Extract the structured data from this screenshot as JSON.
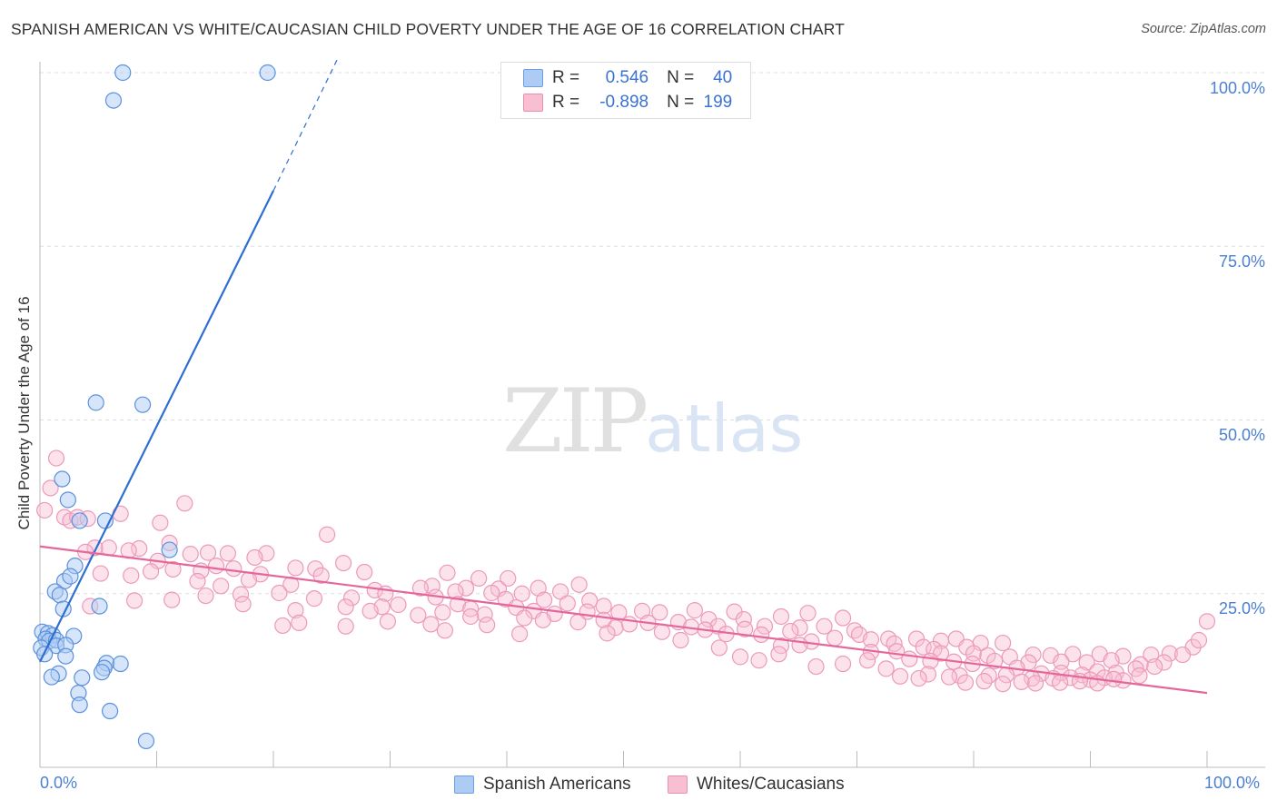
{
  "header": {
    "title": "SPANISH AMERICAN VS WHITE/CAUCASIAN CHILD POVERTY UNDER THE AGE OF 16 CORRELATION CHART",
    "source": "Source: ZipAtlas.com"
  },
  "watermark": {
    "zip": "ZIP",
    "atlas": "atlas"
  },
  "legend": {
    "rows": [
      {
        "r_label": "R =",
        "r_value": "0.546",
        "n_label": "N =",
        "n_value": "40"
      },
      {
        "r_label": "R =",
        "r_value": "-0.898",
        "n_label": "N =",
        "n_value": "199"
      }
    ]
  },
  "bottom_legend": {
    "series1": "Spanish Americans",
    "series2": "Whites/Caucasians"
  },
  "colors": {
    "blue_fill": "#aecbf4",
    "blue_stroke": "#5b91dd",
    "blue_line": "#2d6fd1",
    "pink_fill": "#f8bfd3",
    "pink_stroke": "#ec9ab9",
    "pink_line": "#e4679a"
  },
  "chart_data": {
    "type": "scatter",
    "title": "SPANISH AMERICAN VS WHITE/CAUCASIAN CHILD POVERTY UNDER THE AGE OF 16 CORRELATION CHART",
    "xlabel": "",
    "ylabel": "Child Poverty Under the Age of 16",
    "xlim": [
      0,
      100
    ],
    "ylim": [
      0,
      100
    ],
    "x_tick_labels": [
      "0.0%",
      "100.0%"
    ],
    "y_ticks": [
      25,
      50,
      75,
      100
    ],
    "y_tick_labels": [
      "25.0%",
      "50.0%",
      "75.0%",
      "100.0%"
    ],
    "grid": true,
    "legend_position": "top-center",
    "series": [
      {
        "name": "Spanish Americans",
        "color": "#aecbf4",
        "r": 0.546,
        "n": 40,
        "trend": {
          "x0": 0,
          "y0": 15.2,
          "x1": 20,
          "y1": 83,
          "dash_to_x": 25.5,
          "dash_to_y": 102
        },
        "points": [
          [
            7.1,
            100
          ],
          [
            19.5,
            100
          ],
          [
            6.3,
            96
          ],
          [
            4.8,
            52.5
          ],
          [
            8.8,
            52.2
          ],
          [
            1.9,
            41.5
          ],
          [
            2.4,
            38.5
          ],
          [
            3.4,
            35.5
          ],
          [
            5.6,
            35.5
          ],
          [
            11.1,
            31.3
          ],
          [
            3,
            29
          ],
          [
            2.1,
            26.8
          ],
          [
            2.6,
            27.5
          ],
          [
            1.3,
            25.3
          ],
          [
            1.7,
            24.8
          ],
          [
            5.1,
            23.2
          ],
          [
            2,
            22.8
          ],
          [
            0.2,
            19.5
          ],
          [
            0.7,
            19.3
          ],
          [
            1.1,
            19
          ],
          [
            2.9,
            18.9
          ],
          [
            0.5,
            18.5
          ],
          [
            0.8,
            18.2
          ],
          [
            1.4,
            18.3
          ],
          [
            0.1,
            17.2
          ],
          [
            1.4,
            17.5
          ],
          [
            2.2,
            17.6
          ],
          [
            0.4,
            16.3
          ],
          [
            2.2,
            16
          ],
          [
            5.7,
            15
          ],
          [
            6.9,
            14.9
          ],
          [
            5.5,
            14.3
          ],
          [
            5.3,
            13.7
          ],
          [
            1.6,
            13.5
          ],
          [
            1,
            13
          ],
          [
            3.6,
            12.9
          ],
          [
            3.3,
            10.7
          ],
          [
            3.4,
            9
          ],
          [
            6,
            8.1
          ],
          [
            9.1,
            3.8
          ]
        ]
      },
      {
        "name": "Whites/Caucasians",
        "color": "#f8bfd3",
        "r": -0.898,
        "n": 199,
        "trend": {
          "x0": 0,
          "y0": 31.8,
          "x1": 100,
          "y1": 10.7
        },
        "points": [
          [
            1.4,
            44.5
          ],
          [
            0.9,
            40.2
          ],
          [
            12.4,
            38
          ],
          [
            0.4,
            37
          ],
          [
            6.9,
            36.5
          ],
          [
            2.1,
            36
          ],
          [
            2.6,
            35.5
          ],
          [
            3.2,
            36
          ],
          [
            4.1,
            35.8
          ],
          [
            10.3,
            35.2
          ],
          [
            24.6,
            33.5
          ],
          [
            11.1,
            32.3
          ],
          [
            5.9,
            31.6
          ],
          [
            4.7,
            31.6
          ],
          [
            8.5,
            31.5
          ],
          [
            7.6,
            31.2
          ],
          [
            3.9,
            31
          ],
          [
            12.9,
            30.7
          ],
          [
            14.4,
            30.9
          ],
          [
            16.1,
            30.8
          ],
          [
            19.4,
            30.8
          ],
          [
            18.4,
            30.2
          ],
          [
            10.1,
            29.7
          ],
          [
            26,
            29.4
          ],
          [
            15.1,
            29
          ],
          [
            11.4,
            28.5
          ],
          [
            9.5,
            28.2
          ],
          [
            13.8,
            28.3
          ],
          [
            16.6,
            28.6
          ],
          [
            21.9,
            28.7
          ],
          [
            23.6,
            28.6
          ],
          [
            27.8,
            28.1
          ],
          [
            5.2,
            27.9
          ],
          [
            7.8,
            27.6
          ],
          [
            18.9,
            27.8
          ],
          [
            24.1,
            27.6
          ],
          [
            17.9,
            27
          ],
          [
            34.9,
            28
          ],
          [
            37.6,
            27.2
          ],
          [
            40.1,
            27.2
          ],
          [
            13.5,
            26.8
          ],
          [
            15.5,
            26.1
          ],
          [
            21.5,
            26.3
          ],
          [
            36.5,
            25.8
          ],
          [
            33.6,
            26.1
          ],
          [
            39.3,
            25.7
          ],
          [
            42.7,
            25.8
          ],
          [
            46.2,
            26.3
          ],
          [
            28.7,
            25.5
          ],
          [
            29.6,
            25
          ],
          [
            32.6,
            25.8
          ],
          [
            35.6,
            25.3
          ],
          [
            38.7,
            25.1
          ],
          [
            41.3,
            25
          ],
          [
            44.6,
            25.3
          ],
          [
            20.5,
            25.1
          ],
          [
            17.2,
            24.9
          ],
          [
            14.2,
            24.7
          ],
          [
            23.5,
            24.3
          ],
          [
            26.7,
            24.4
          ],
          [
            33.9,
            24.5
          ],
          [
            39.9,
            24.2
          ],
          [
            43.2,
            24.1
          ],
          [
            47.1,
            24
          ],
          [
            8.1,
            24
          ],
          [
            11.3,
            24.1
          ],
          [
            17.4,
            23.5
          ],
          [
            30.7,
            23.4
          ],
          [
            29.3,
            23.1
          ],
          [
            35.8,
            23.5
          ],
          [
            36.9,
            22.8
          ],
          [
            40.8,
            23
          ],
          [
            45.2,
            23.6
          ],
          [
            48.3,
            23.2
          ],
          [
            4.3,
            23.2
          ],
          [
            21.9,
            22.6
          ],
          [
            26.2,
            23.1
          ],
          [
            28.3,
            22.5
          ],
          [
            34.5,
            22.3
          ],
          [
            38.1,
            22
          ],
          [
            42.3,
            22.5
          ],
          [
            44.1,
            22.1
          ],
          [
            46.9,
            22.4
          ],
          [
            49.6,
            22.3
          ],
          [
            51.6,
            22.5
          ],
          [
            53.1,
            22.3
          ],
          [
            56.1,
            22.6
          ],
          [
            59.5,
            22.4
          ],
          [
            32.4,
            21.9
          ],
          [
            36.9,
            21.7
          ],
          [
            41.5,
            21.5
          ],
          [
            43.1,
            21.2
          ],
          [
            46.1,
            20.9
          ],
          [
            48.3,
            21.2
          ],
          [
            50.5,
            20.6
          ],
          [
            54.7,
            20.9
          ],
          [
            57.3,
            21.3
          ],
          [
            60.3,
            21.3
          ],
          [
            63.5,
            21.7
          ],
          [
            65.8,
            22.2
          ],
          [
            68.8,
            21.5
          ],
          [
            22.2,
            20.8
          ],
          [
            29.8,
            21
          ],
          [
            33.5,
            20.6
          ],
          [
            38.3,
            20.5
          ],
          [
            49.3,
            20.1
          ],
          [
            52.1,
            20.8
          ],
          [
            55.8,
            20.2
          ],
          [
            58.1,
            20.3
          ],
          [
            60.4,
            19.9
          ],
          [
            62.1,
            20.3
          ],
          [
            65.1,
            20.1
          ],
          [
            67.2,
            20.3
          ],
          [
            69.8,
            19.7
          ],
          [
            26.2,
            20.3
          ],
          [
            20.8,
            20.4
          ],
          [
            34.7,
            19.7
          ],
          [
            41.1,
            19.2
          ],
          [
            48.6,
            19.3
          ],
          [
            53.3,
            19.5
          ],
          [
            57,
            19.8
          ],
          [
            58.8,
            19.2
          ],
          [
            61.8,
            19.1
          ],
          [
            64.3,
            19.6
          ],
          [
            70.2,
            19.1
          ],
          [
            72.7,
            18.5
          ],
          [
            66.1,
            18.1
          ],
          [
            68.1,
            18.6
          ],
          [
            71.2,
            18.4
          ],
          [
            75.1,
            18.5
          ],
          [
            77.2,
            18.2
          ],
          [
            78.5,
            18.5
          ],
          [
            80.6,
            17.9
          ],
          [
            82.5,
            17.9
          ],
          [
            73.2,
            17.8
          ],
          [
            75.7,
            17.3
          ],
          [
            76.6,
            17
          ],
          [
            79.4,
            17.3
          ],
          [
            63.5,
            17.5
          ],
          [
            65.1,
            17.6
          ],
          [
            58.2,
            17.2
          ],
          [
            54.9,
            18.3
          ],
          [
            73.4,
            16.7
          ],
          [
            77.2,
            16.4
          ],
          [
            80,
            16.4
          ],
          [
            81.2,
            16.1
          ],
          [
            83.1,
            15.9
          ],
          [
            85.1,
            16.2
          ],
          [
            86.6,
            16.1
          ],
          [
            88.5,
            16.3
          ],
          [
            90.8,
            16.3
          ],
          [
            92.8,
            16
          ],
          [
            95.2,
            16.2
          ],
          [
            96.8,
            16.4
          ],
          [
            71.2,
            16.6
          ],
          [
            74.5,
            15.6
          ],
          [
            78.3,
            15.2
          ],
          [
            81.8,
            15.3
          ],
          [
            84.7,
            15.1
          ],
          [
            87.5,
            15.2
          ],
          [
            89.7,
            15.1
          ],
          [
            91.8,
            15.4
          ],
          [
            94.3,
            14.8
          ],
          [
            96.3,
            15.1
          ],
          [
            98.8,
            17.3
          ],
          [
            97.9,
            16.2
          ],
          [
            99.3,
            18.3
          ],
          [
            100,
            21
          ],
          [
            76.3,
            15.3
          ],
          [
            79.9,
            14.9
          ],
          [
            83.7,
            14.3
          ],
          [
            85.8,
            13.5
          ],
          [
            87.5,
            13.6
          ],
          [
            89.3,
            13.3
          ],
          [
            90.6,
            13.8
          ],
          [
            92.2,
            13.6
          ],
          [
            93.9,
            14.2
          ],
          [
            95.5,
            14.5
          ],
          [
            76.1,
            13.4
          ],
          [
            78.8,
            13.2
          ],
          [
            81.3,
            13.2
          ],
          [
            82.8,
            13.3
          ],
          [
            85,
            12.8
          ],
          [
            86.8,
            12.8
          ],
          [
            88.3,
            12.9
          ],
          [
            90,
            12.6
          ],
          [
            91.2,
            12.9
          ],
          [
            92.8,
            12.5
          ],
          [
            94.2,
            13.2
          ],
          [
            73.7,
            13.1
          ],
          [
            75.3,
            12.8
          ],
          [
            77.9,
            13
          ],
          [
            79.3,
            12.2
          ],
          [
            80.9,
            12.4
          ],
          [
            82.5,
            12
          ],
          [
            84.1,
            12.3
          ],
          [
            85.3,
            12.1
          ],
          [
            87.4,
            12.2
          ],
          [
            89.1,
            12.4
          ],
          [
            90.6,
            12.1
          ],
          [
            92,
            12.7
          ],
          [
            70.9,
            15.4
          ],
          [
            72.5,
            14.2
          ],
          [
            68.8,
            14.9
          ],
          [
            66.5,
            14.5
          ],
          [
            61.6,
            15.4
          ],
          [
            60,
            15.9
          ],
          [
            63.3,
            16.3
          ]
        ]
      }
    ]
  }
}
